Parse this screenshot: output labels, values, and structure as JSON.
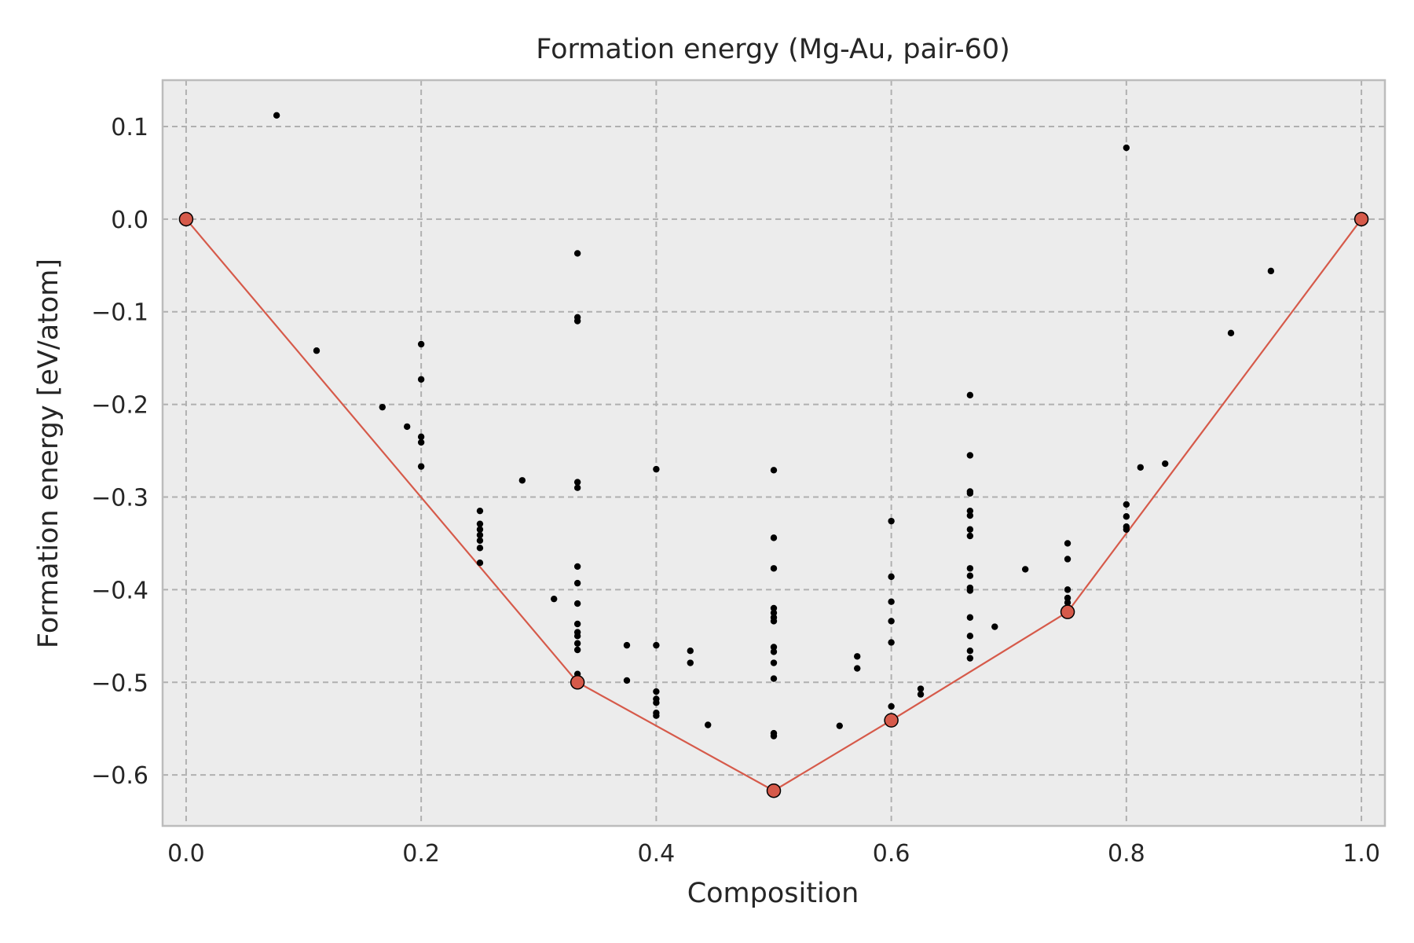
{
  "chart_data": {
    "type": "scatter",
    "title": "Formation energy (Mg-Au, pair-60)",
    "xlabel": "Composition",
    "ylabel": "Formation energy [eV/atom]",
    "xlim": [
      -0.02,
      1.02
    ],
    "ylim": [
      -0.655,
      0.15
    ],
    "xticks": [
      0.0,
      0.2,
      0.4,
      0.6,
      0.8,
      1.0
    ],
    "xtick_labels": [
      "0.0",
      "0.2",
      "0.4",
      "0.6",
      "0.8",
      "1.0"
    ],
    "yticks": [
      0.1,
      0.0,
      -0.1,
      -0.2,
      -0.3,
      -0.4,
      -0.5,
      -0.6
    ],
    "ytick_labels": [
      "0.1",
      "0.0",
      "−0.1",
      "−0.2",
      "−0.3",
      "−0.4",
      "−0.5",
      "−0.6"
    ],
    "grid": true,
    "colors": {
      "background": "#ececec",
      "hull": "#d65a4a",
      "points": "#000000",
      "grid": "#b0b0b0",
      "frame": "#bcbcbc"
    },
    "series": [
      {
        "type": "scatter",
        "points": [
          [
            0.077,
            0.112
          ],
          [
            0.111,
            -0.142
          ],
          [
            0.167,
            -0.203
          ],
          [
            0.188,
            -0.224
          ],
          [
            0.2,
            -0.135
          ],
          [
            0.2,
            -0.173
          ],
          [
            0.2,
            -0.235
          ],
          [
            0.2,
            -0.241
          ],
          [
            0.2,
            -0.267
          ],
          [
            0.25,
            -0.315
          ],
          [
            0.25,
            -0.329
          ],
          [
            0.25,
            -0.335
          ],
          [
            0.25,
            -0.341
          ],
          [
            0.25,
            -0.347
          ],
          [
            0.25,
            -0.355
          ],
          [
            0.25,
            -0.371
          ],
          [
            0.286,
            -0.282
          ],
          [
            0.313,
            -0.41
          ],
          [
            0.333,
            -0.037
          ],
          [
            0.333,
            -0.106
          ],
          [
            0.333,
            -0.11
          ],
          [
            0.333,
            -0.284
          ],
          [
            0.333,
            -0.29
          ],
          [
            0.333,
            -0.375
          ],
          [
            0.333,
            -0.393
          ],
          [
            0.333,
            -0.415
          ],
          [
            0.333,
            -0.437
          ],
          [
            0.333,
            -0.446
          ],
          [
            0.333,
            -0.45
          ],
          [
            0.333,
            -0.458
          ],
          [
            0.333,
            -0.465
          ],
          [
            0.333,
            -0.491
          ],
          [
            0.375,
            -0.46
          ],
          [
            0.375,
            -0.498
          ],
          [
            0.4,
            -0.27
          ],
          [
            0.4,
            -0.46
          ],
          [
            0.4,
            -0.51
          ],
          [
            0.4,
            -0.518
          ],
          [
            0.4,
            -0.522
          ],
          [
            0.4,
            -0.533
          ],
          [
            0.4,
            -0.536
          ],
          [
            0.429,
            -0.466
          ],
          [
            0.429,
            -0.479
          ],
          [
            0.444,
            -0.546
          ],
          [
            0.5,
            -0.271
          ],
          [
            0.5,
            -0.344
          ],
          [
            0.5,
            -0.377
          ],
          [
            0.5,
            -0.42
          ],
          [
            0.5,
            -0.425
          ],
          [
            0.5,
            -0.43
          ],
          [
            0.5,
            -0.434
          ],
          [
            0.5,
            -0.462
          ],
          [
            0.5,
            -0.467
          ],
          [
            0.5,
            -0.479
          ],
          [
            0.5,
            -0.496
          ],
          [
            0.5,
            -0.555
          ],
          [
            0.5,
            -0.558
          ],
          [
            0.556,
            -0.547
          ],
          [
            0.571,
            -0.472
          ],
          [
            0.571,
            -0.485
          ],
          [
            0.6,
            -0.326
          ],
          [
            0.6,
            -0.386
          ],
          [
            0.6,
            -0.413
          ],
          [
            0.6,
            -0.434
          ],
          [
            0.6,
            -0.457
          ],
          [
            0.6,
            -0.526
          ],
          [
            0.625,
            -0.507
          ],
          [
            0.625,
            -0.513
          ],
          [
            0.667,
            -0.19
          ],
          [
            0.667,
            -0.255
          ],
          [
            0.667,
            -0.294
          ],
          [
            0.667,
            -0.296
          ],
          [
            0.667,
            -0.315
          ],
          [
            0.667,
            -0.32
          ],
          [
            0.667,
            -0.335
          ],
          [
            0.667,
            -0.342
          ],
          [
            0.667,
            -0.377
          ],
          [
            0.667,
            -0.385
          ],
          [
            0.667,
            -0.398
          ],
          [
            0.667,
            -0.401
          ],
          [
            0.667,
            -0.43
          ],
          [
            0.667,
            -0.45
          ],
          [
            0.667,
            -0.466
          ],
          [
            0.667,
            -0.474
          ],
          [
            0.688,
            -0.44
          ],
          [
            0.714,
            -0.378
          ],
          [
            0.75,
            -0.35
          ],
          [
            0.75,
            -0.367
          ],
          [
            0.75,
            -0.4
          ],
          [
            0.75,
            -0.409
          ],
          [
            0.75,
            -0.414
          ],
          [
            0.8,
            0.077
          ],
          [
            0.8,
            -0.308
          ],
          [
            0.8,
            -0.321
          ],
          [
            0.8,
            -0.332
          ],
          [
            0.8,
            -0.335
          ],
          [
            0.812,
            -0.268
          ],
          [
            0.833,
            -0.264
          ],
          [
            0.889,
            -0.123
          ],
          [
            0.923,
            -0.056
          ]
        ]
      },
      {
        "type": "line",
        "points": [
          [
            0.0,
            0.0
          ],
          [
            0.333,
            -0.5
          ],
          [
            0.5,
            -0.617
          ],
          [
            0.6,
            -0.541
          ],
          [
            0.75,
            -0.424
          ],
          [
            1.0,
            0.0
          ]
        ]
      }
    ]
  }
}
